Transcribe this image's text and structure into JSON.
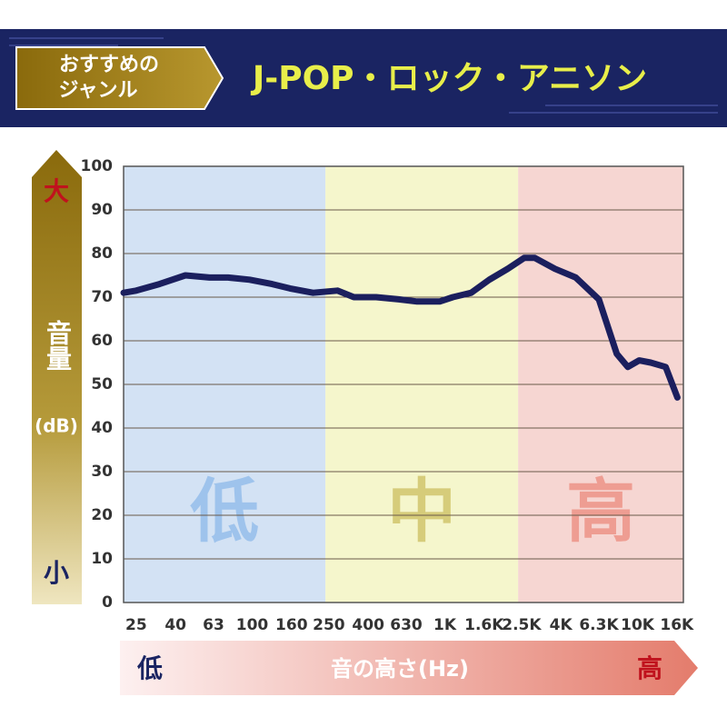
{
  "chart_data": {
    "type": "line",
    "badge_lines": [
      "おすすめの",
      "ジャンル"
    ],
    "title": "J-POP・ロック・アニソン",
    "ylabel": "音量",
    "ylabel_unit": "(dB)",
    "y_high": "大",
    "y_low": "小",
    "xlabel": "音の高さ(Hz)",
    "x_low": "低",
    "x_high": "高",
    "log_x": true,
    "grid": true,
    "xlim": [
      21.5,
      17300
    ],
    "ylim": [
      0,
      100
    ],
    "yticks": [
      0,
      10,
      20,
      30,
      40,
      50,
      60,
      70,
      80,
      90,
      100
    ],
    "xticks": [
      25,
      40,
      63,
      100,
      160,
      250,
      400,
      630,
      {
        "value": 1000,
        "label": "1K"
      },
      {
        "value": 1600,
        "label": "1.6K"
      },
      {
        "value": 2500,
        "label": "2.5K"
      },
      {
        "value": 4000,
        "label": "4K"
      },
      {
        "value": 6300,
        "label": "6.3K"
      },
      {
        "value": 10000,
        "label": "10K"
      },
      {
        "value": 16000,
        "label": "16K"
      }
    ],
    "bands": [
      {
        "label": "低",
        "from": 21.5,
        "to": 240,
        "color": "#d3e2f4",
        "label_color": "#9ec3ec"
      },
      {
        "label": "中",
        "from": 240,
        "to": 2400,
        "color": "#f5f6cc",
        "label_color": "#d6cc7a"
      },
      {
        "label": "高",
        "from": 2400,
        "to": 17300,
        "color": "#f6d6d2",
        "label_color": "#ee9d92"
      }
    ],
    "series": [
      {
        "color": "#1b1f5e",
        "x": [
          21.5,
          25,
          33,
          45,
          60,
          75,
          97,
          127,
          157,
          207,
          277,
          337,
          440,
          576,
          718,
          940,
          1100,
          1370,
          1700,
          2120,
          2580,
          2930,
          3730,
          4780,
          6300,
          7800,
          8900,
          10200,
          11700,
          14000,
          16100
        ],
        "values": [
          71,
          71.5,
          73,
          75,
          74.5,
          74.5,
          74,
          73,
          72,
          71,
          71.5,
          70,
          70,
          69.5,
          69,
          69,
          70,
          71,
          74,
          76.5,
          79,
          79,
          76.5,
          74.5,
          69.5,
          57,
          54,
          55.5,
          55,
          54,
          47
        ]
      }
    ]
  }
}
